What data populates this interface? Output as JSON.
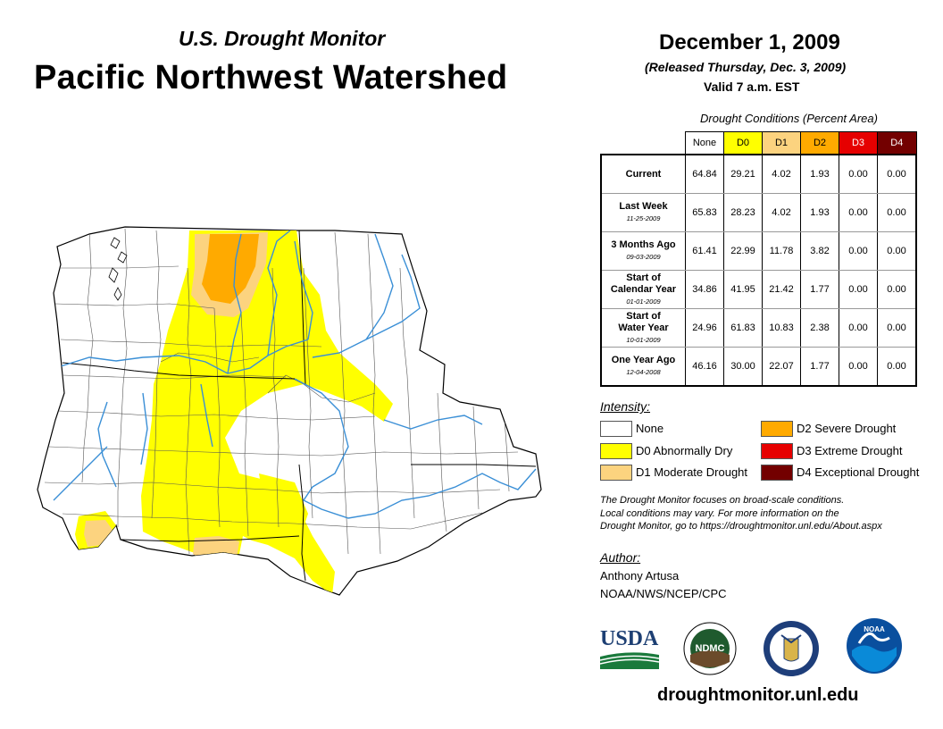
{
  "header": {
    "subtitle": "U.S. Drought Monitor",
    "title": "Pacific Northwest Watershed",
    "date": "December 1, 2009",
    "released": "(Released Thursday, Dec. 3, 2009)",
    "valid": "Valid 7 a.m. EST"
  },
  "table": {
    "caption": "Drought Conditions (Percent Area)",
    "columns": [
      {
        "label": "None",
        "color": "#ffffff"
      },
      {
        "label": "D0",
        "color": "#ffff00"
      },
      {
        "label": "D1",
        "color": "#fcd37f"
      },
      {
        "label": "D2",
        "color": "#ffaa00"
      },
      {
        "label": "D3",
        "color": "#e60000"
      },
      {
        "label": "D4",
        "color": "#730000"
      }
    ],
    "rows": [
      {
        "label": "Current",
        "label2": "",
        "date": "",
        "values": [
          "64.84",
          "29.21",
          "4.02",
          "1.93",
          "0.00",
          "0.00"
        ]
      },
      {
        "label": "Last Week",
        "label2": "",
        "date": "11-25-2009",
        "values": [
          "65.83",
          "28.23",
          "4.02",
          "1.93",
          "0.00",
          "0.00"
        ]
      },
      {
        "label": "3 Months Ago",
        "label2": "",
        "date": "09-03-2009",
        "values": [
          "61.41",
          "22.99",
          "11.78",
          "3.82",
          "0.00",
          "0.00"
        ]
      },
      {
        "label": "Start of",
        "label2": "Calendar Year",
        "date": "01-01-2009",
        "values": [
          "34.86",
          "41.95",
          "21.42",
          "1.77",
          "0.00",
          "0.00"
        ]
      },
      {
        "label": "Start of",
        "label2": "Water Year",
        "date": "10-01-2009",
        "values": [
          "24.96",
          "61.83",
          "10.83",
          "2.38",
          "0.00",
          "0.00"
        ]
      },
      {
        "label": "One Year Ago",
        "label2": "",
        "date": "12-04-2008",
        "values": [
          "46.16",
          "30.00",
          "22.07",
          "1.77",
          "0.00",
          "0.00"
        ]
      }
    ]
  },
  "legend": {
    "title": "Intensity:",
    "items": [
      {
        "label": "None",
        "color": "#ffffff"
      },
      {
        "label": "D0 Abnormally Dry",
        "color": "#ffff00"
      },
      {
        "label": "D1 Moderate Drought",
        "color": "#fcd37f"
      },
      {
        "label": "D2 Severe Drought",
        "color": "#ffaa00"
      },
      {
        "label": "D3 Extreme Drought",
        "color": "#e60000"
      },
      {
        "label": "D4 Exceptional Drought",
        "color": "#730000"
      }
    ]
  },
  "note": [
    "The Drought Monitor focuses on broad-scale conditions.",
    "Local conditions may vary. For more information on the",
    "Drought Monitor, go to https://droughtmonitor.unl.edu/About.aspx"
  ],
  "author": {
    "heading": "Author:",
    "name": "Anthony Artusa",
    "org": "NOAA/NWS/NCEP/CPC"
  },
  "logos": {
    "usda": "USDA",
    "ndmc": "NDMC",
    "noaa": "NOAA"
  },
  "url": "droughtmonitor.unl.edu",
  "colors": {
    "river": "#3a8fd6",
    "border": "#555555"
  }
}
